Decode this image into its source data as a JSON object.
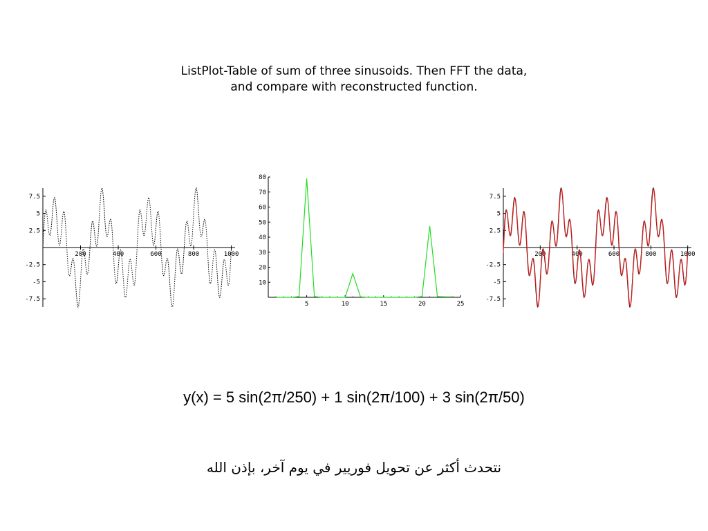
{
  "slide": {
    "title_line1": "ListPlot-Table of sum of three sinusoids. Then FFT the data,",
    "title_line2": "and compare with reconstructed function.",
    "formula": "y(x) = 5 sin(2π/250) + 1 sin(2π/100) + 3 sin(2π/50)",
    "arabic_note": "نتحدث أكثر عن تحويل فوريير في يوم آخر، بإذن الله"
  },
  "chart_data": [
    {
      "type": "line",
      "description_id": "signal",
      "function": {
        "terms": [
          {
            "amplitude": 5,
            "period": 250
          },
          {
            "amplitude": 1,
            "period": 100
          },
          {
            "amplitude": 3,
            "period": 50
          }
        ],
        "x_range": [
          0,
          1000
        ]
      },
      "series": [
        {
          "color": "#000000",
          "dashed": true
        }
      ],
      "x_ticks": [
        200,
        400,
        600,
        800,
        1000
      ],
      "x_tick_labels": [
        "200",
        "400",
        "600",
        "800",
        "1000"
      ],
      "y_ticks": [
        7.5,
        5,
        2.5,
        -2.5,
        -5,
        -7.5
      ],
      "y_tick_labels": [
        "7.5",
        "5",
        "2.5",
        "-2.5",
        "-5",
        "-7.5"
      ],
      "xlim": [
        0,
        1020
      ],
      "ylim": [
        -8.7,
        8.7
      ]
    },
    {
      "type": "line",
      "description_id": "fft",
      "x": [
        1,
        2,
        3,
        4,
        5,
        6,
        7,
        8,
        9,
        10,
        11,
        12,
        13,
        14,
        15,
        16,
        17,
        18,
        19,
        20,
        21,
        22,
        23,
        24
      ],
      "values": [
        0,
        0,
        0,
        0.5,
        79,
        0.5,
        0,
        0,
        0,
        0,
        15.8,
        0.3,
        0,
        0,
        0,
        0,
        0,
        0,
        0,
        0.5,
        47.4,
        0.5,
        0.3,
        0.3
      ],
      "series": [
        {
          "color": "#22dd22"
        }
      ],
      "x_ticks": [
        5,
        10,
        15,
        20,
        25
      ],
      "x_tick_labels": [
        "5",
        "10",
        "15",
        "20",
        "25"
      ],
      "y_ticks": [
        10,
        20,
        30,
        40,
        50,
        60,
        70,
        80
      ],
      "y_tick_labels": [
        "10",
        "20",
        "30",
        "40",
        "50",
        "60",
        "70",
        "80"
      ],
      "xlim": [
        0,
        25
      ],
      "ylim": [
        0,
        80
      ]
    },
    {
      "type": "line",
      "description_id": "reconstructed",
      "function": {
        "terms": [
          {
            "amplitude": 5,
            "period": 250
          },
          {
            "amplitude": 1,
            "period": 100
          },
          {
            "amplitude": 3,
            "period": 50
          }
        ],
        "x_range": [
          0,
          1000
        ]
      },
      "series": [
        {
          "color": "#000000",
          "dashed": false
        },
        {
          "color": "#dd2222",
          "dashed": false,
          "reconstructed": true
        }
      ],
      "x_ticks": [
        200,
        400,
        600,
        800,
        1000
      ],
      "x_tick_labels": [
        "200",
        "400",
        "600",
        "800",
        "1000"
      ],
      "y_ticks": [
        7.5,
        5,
        2.5,
        -2.5,
        -5,
        -7.5
      ],
      "y_tick_labels": [
        "7.5",
        "5",
        "2.5",
        "-2.5",
        "-5",
        "-7.5"
      ],
      "xlim": [
        0,
        1020
      ],
      "ylim": [
        -8.7,
        8.7
      ]
    }
  ]
}
